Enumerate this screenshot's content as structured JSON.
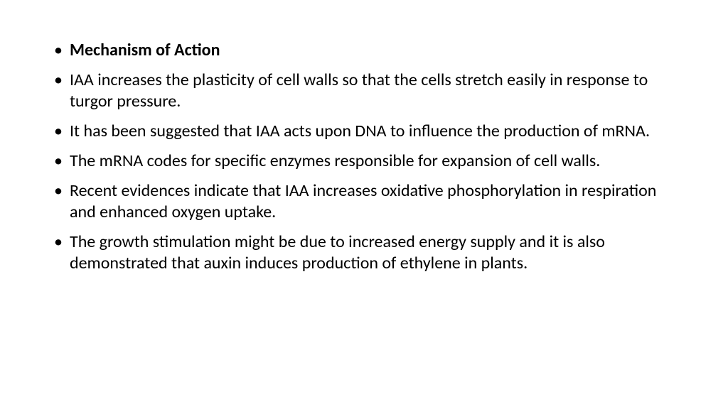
{
  "slide": {
    "bullets": [
      {
        "text": "Mechanism of Action",
        "bold": true
      },
      {
        "text": "IAA increases the plasticity of cell walls so that the cells stretch easily in response to turgor pressure.",
        "bold": false
      },
      {
        "text": "It has been suggested that IAA acts upon DNA to influence the production of mRNA.",
        "bold": false
      },
      {
        "text": "The mRNA codes for specific enzymes responsible for expansion of cell walls.",
        "bold": false
      },
      {
        "text": "Recent evidences indicate that IAA increases oxidative phosphorylation in respiration and enhanced oxygen uptake.",
        "bold": false
      },
      {
        "text": "The growth stimulation might be due to increased energy supply and it is also demonstrated that auxin induces production of ethylene in plants.",
        "bold": false
      }
    ],
    "text_color": "#000000",
    "background_color": "#ffffff",
    "font_size_pt": 18,
    "font_family": "Calibri"
  }
}
